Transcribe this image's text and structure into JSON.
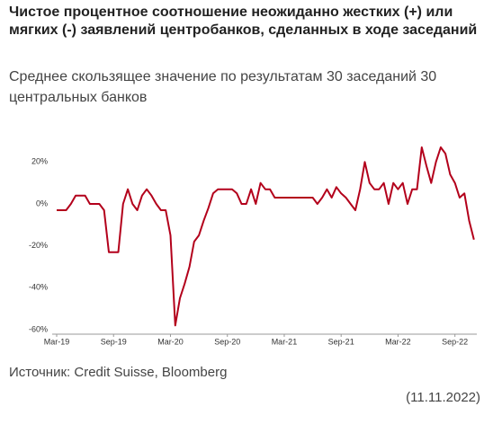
{
  "chart_data": {
    "type": "line",
    "title": "Чистое процентное соотношение неожиданно жестких (+) или мягких (-) заявлений центробанков, сделанных в ходе заседаний",
    "subtitle": "Среднее скользящее значение по результатам 30 заседаний 30 центральных банков",
    "source": "Источник: Credit Suisse, Bloomberg",
    "date": "(11.11.2022)",
    "categories": [
      "Mar-19",
      null,
      null,
      null,
      null,
      null,
      null,
      null,
      null,
      null,
      null,
      null,
      "Sep-19",
      null,
      null,
      null,
      null,
      null,
      null,
      null,
      null,
      null,
      null,
      null,
      "Mar-20",
      null,
      null,
      null,
      null,
      null,
      null,
      null,
      null,
      null,
      null,
      null,
      "Sep-20",
      null,
      null,
      null,
      null,
      null,
      null,
      null,
      null,
      null,
      null,
      null,
      "Mar-21",
      null,
      null,
      null,
      null,
      null,
      null,
      null,
      null,
      null,
      null,
      null,
      "Sep-21",
      null,
      null,
      null,
      null,
      null,
      null,
      null,
      null,
      null,
      null,
      null,
      "Mar-22",
      null,
      null,
      null,
      null,
      null,
      null,
      null,
      null,
      null,
      null,
      null,
      "Sep-22",
      null,
      null,
      null,
      null
    ],
    "series": [
      {
        "color": "#b3001b",
        "values": [
          -3,
          -3,
          -3,
          0,
          4,
          4,
          4,
          0,
          0,
          0,
          -3,
          -23,
          -23,
          -23,
          0,
          7,
          0,
          -3,
          4,
          7,
          4,
          0,
          -3,
          -3,
          -15,
          -58,
          -45,
          -38,
          -30,
          -18,
          -15,
          -8,
          -2,
          5,
          7,
          7,
          7,
          7,
          5,
          0,
          0,
          7,
          0,
          10,
          7,
          7,
          3,
          3,
          3,
          3,
          3,
          3,
          3,
          3,
          3,
          0,
          3,
          7,
          3,
          8,
          5,
          3,
          0,
          -3,
          7,
          20,
          10,
          7,
          7,
          10,
          0,
          10,
          7,
          10,
          0,
          7,
          7,
          27,
          18,
          10,
          20,
          27,
          24,
          14,
          10,
          3,
          5,
          -8,
          -17
        ]
      }
    ],
    "ylim": [
      -60,
      30
    ],
    "yticks": [
      {
        "value": -60,
        "label": "-60%"
      },
      {
        "value": -40,
        "label": "-40%"
      },
      {
        "value": -20,
        "label": "-20%"
      },
      {
        "value": 0,
        "label": "0%"
      },
      {
        "value": 20,
        "label": "20%"
      }
    ],
    "grid": false
  }
}
